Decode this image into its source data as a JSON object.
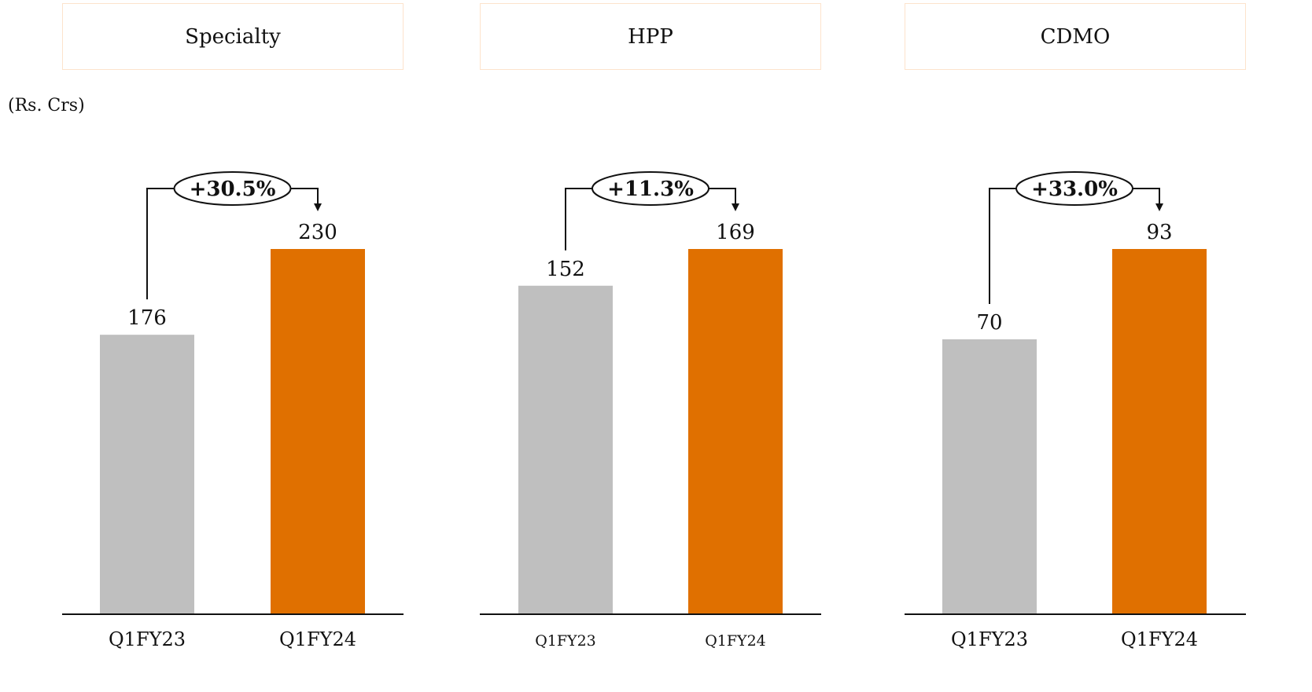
{
  "unit_label": "(Rs. Crs)",
  "colors": {
    "prior": "#bfbfbf",
    "current": "#e07000",
    "box_border": "#fde3cc",
    "axis": "#111111"
  },
  "chart_data": [
    {
      "type": "bar",
      "title": "Specialty",
      "categories": [
        "Q1FY23",
        "Q1FY24"
      ],
      "values": [
        176,
        230
      ],
      "value_labels": [
        "176",
        "230"
      ],
      "growth_label": "+30.5%"
    },
    {
      "type": "bar",
      "title": "HPP",
      "categories": [
        "Q1FY23",
        "Q1FY24"
      ],
      "values": [
        152,
        169
      ],
      "value_labels": [
        "152",
        "169"
      ],
      "growth_label": "+11.3%"
    },
    {
      "type": "bar",
      "title": "CDMO",
      "categories": [
        "Q1FY23",
        "Q1FY24"
      ],
      "values": [
        70,
        93
      ],
      "value_labels": [
        "70",
        "93"
      ],
      "growth_label": "+33.0%"
    }
  ]
}
